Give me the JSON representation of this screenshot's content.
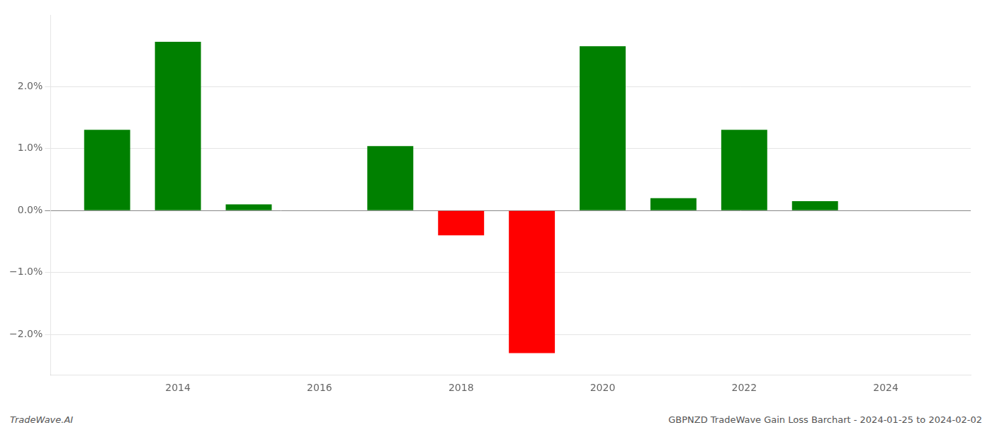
{
  "chart_data": {
    "type": "bar",
    "x": [
      2013,
      2014,
      2015,
      2017,
      2018,
      2019,
      2020,
      2021,
      2022,
      2023
    ],
    "values": [
      1.3,
      2.72,
      0.1,
      1.04,
      -0.4,
      -2.3,
      2.65,
      0.2,
      1.3,
      0.15
    ],
    "colors": [
      "#008000",
      "#008000",
      "#008000",
      "#008000",
      "#ff0000",
      "#ff0000",
      "#008000",
      "#008000",
      "#008000",
      "#008000"
    ],
    "xlim": [
      2012.2,
      2025.2
    ],
    "xticks": [
      2014,
      2016,
      2018,
      2020,
      2022,
      2024
    ],
    "ylim": [
      -2.65,
      3.15
    ],
    "yticks": [
      {
        "value": -2.0,
        "label": "−2.0%"
      },
      {
        "value": -1.0,
        "label": "−1.0%"
      },
      {
        "value": 0.0,
        "label": "0.0%"
      },
      {
        "value": 1.0,
        "label": "1.0%"
      },
      {
        "value": 2.0,
        "label": "2.0%"
      }
    ],
    "grid": true,
    "annotations": [
      "TradeWave.AI",
      "GBPNZD TradeWave Gain Loss Barchart - 2024-01-25 to 2024-02-02"
    ]
  }
}
